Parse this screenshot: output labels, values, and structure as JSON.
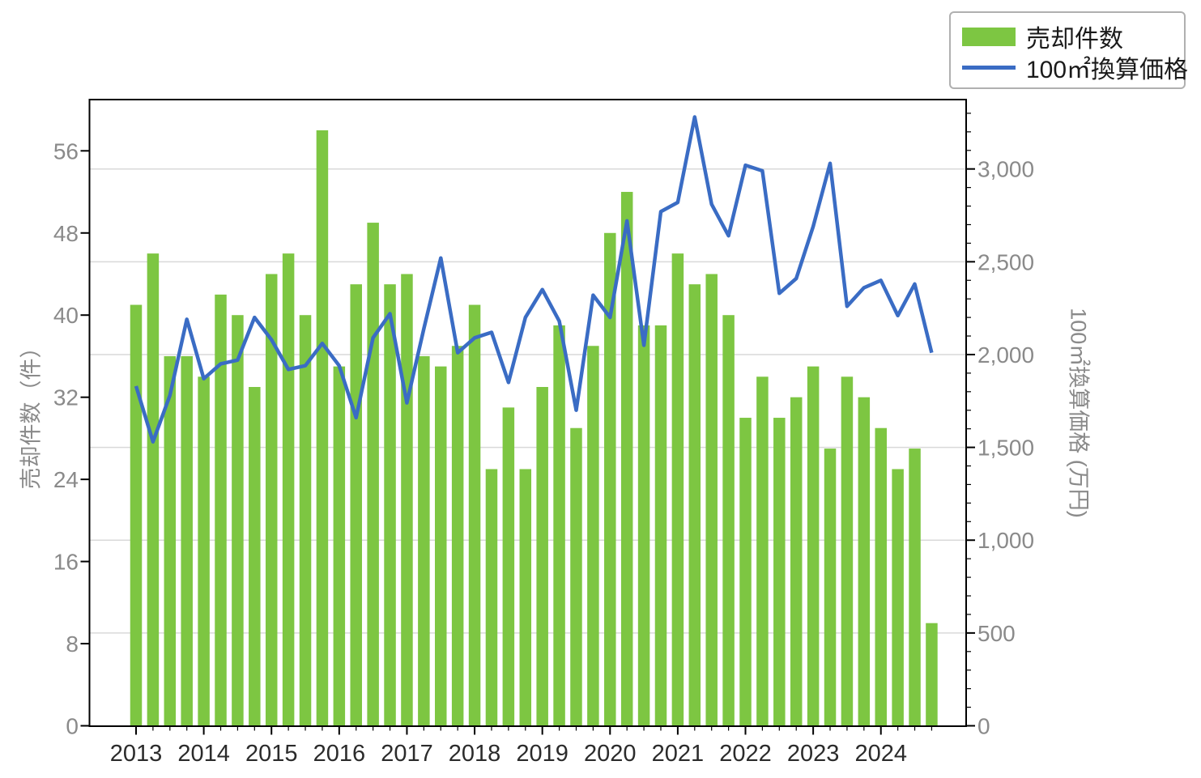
{
  "chart_data": {
    "type": "bar+line",
    "title": "",
    "x": {
      "tick_labels": [
        "2013",
        "2014",
        "2015",
        "2016",
        "2017",
        "2018",
        "2019",
        "2020",
        "2021",
        "2022",
        "2023",
        "2024"
      ],
      "quarters_per_year": 4,
      "n_points": 48
    },
    "left_axis": {
      "label": "売却件数（件）",
      "tick_values": [
        0,
        8,
        16,
        24,
        32,
        40,
        48,
        56
      ],
      "tick_labels": [
        "0",
        "8",
        "16",
        "24",
        "32",
        "40",
        "48",
        "56"
      ],
      "range": [
        0,
        61
      ]
    },
    "right_axis": {
      "label": "100㎡換算価格 (万円)",
      "tick_values": [
        0,
        500,
        1000,
        1500,
        2000,
        2500,
        3000
      ],
      "tick_labels": [
        "0",
        "500",
        "1,000",
        "1,500",
        "2,000",
        "2,500",
        "3,000"
      ],
      "minor_step": 100,
      "range": [
        0,
        3374
      ]
    },
    "series": [
      {
        "name": "売却件数",
        "type": "bar",
        "axis": "left",
        "color": "#7dc642",
        "values": [
          41,
          46,
          36,
          36,
          34,
          42,
          40,
          33,
          44,
          46,
          40,
          58,
          35,
          43,
          49,
          43,
          44,
          36,
          35,
          37,
          41,
          25,
          31,
          25,
          33,
          39,
          29,
          37,
          48,
          52,
          39,
          39,
          46,
          43,
          44,
          40,
          30,
          34,
          30,
          32,
          35,
          27,
          34,
          32,
          29,
          25,
          27,
          10
        ]
      },
      {
        "name": "100㎡換算価格",
        "type": "line",
        "axis": "right",
        "color": "#3a6cc4",
        "values": [
          1830,
          1530,
          1780,
          2190,
          1870,
          1950,
          1970,
          2200,
          2080,
          1920,
          1940,
          2060,
          1940,
          1660,
          2090,
          2220,
          1740,
          2140,
          2520,
          2010,
          2090,
          2120,
          1850,
          2200,
          2350,
          2180,
          1700,
          2320,
          2200,
          2720,
          2050,
          2770,
          2820,
          3280,
          2810,
          2640,
          3020,
          2990,
          2330,
          2410,
          2690,
          3030,
          2260,
          2360,
          2400,
          2210,
          2380,
          2010
        ]
      }
    ],
    "legend": {
      "items": [
        {
          "label": "売却件数",
          "marker": "bar-swatch"
        },
        {
          "label": "100㎡換算価格",
          "marker": "line-swatch"
        }
      ],
      "position": "top-right"
    },
    "grid": {
      "orientation": "horizontal",
      "follows": "right-axis-majors",
      "on": true
    }
  },
  "colors": {
    "bar": "#7dc642",
    "line": "#3a6cc4",
    "grid": "#d9d9d9",
    "frame": "#000000",
    "y_tick_label": "#8a8a8a",
    "x_tick_label": "#2b2b2b",
    "axis_title": "#8a8a8a",
    "legend_border": "#b0b0b0",
    "background": "#ffffff"
  }
}
